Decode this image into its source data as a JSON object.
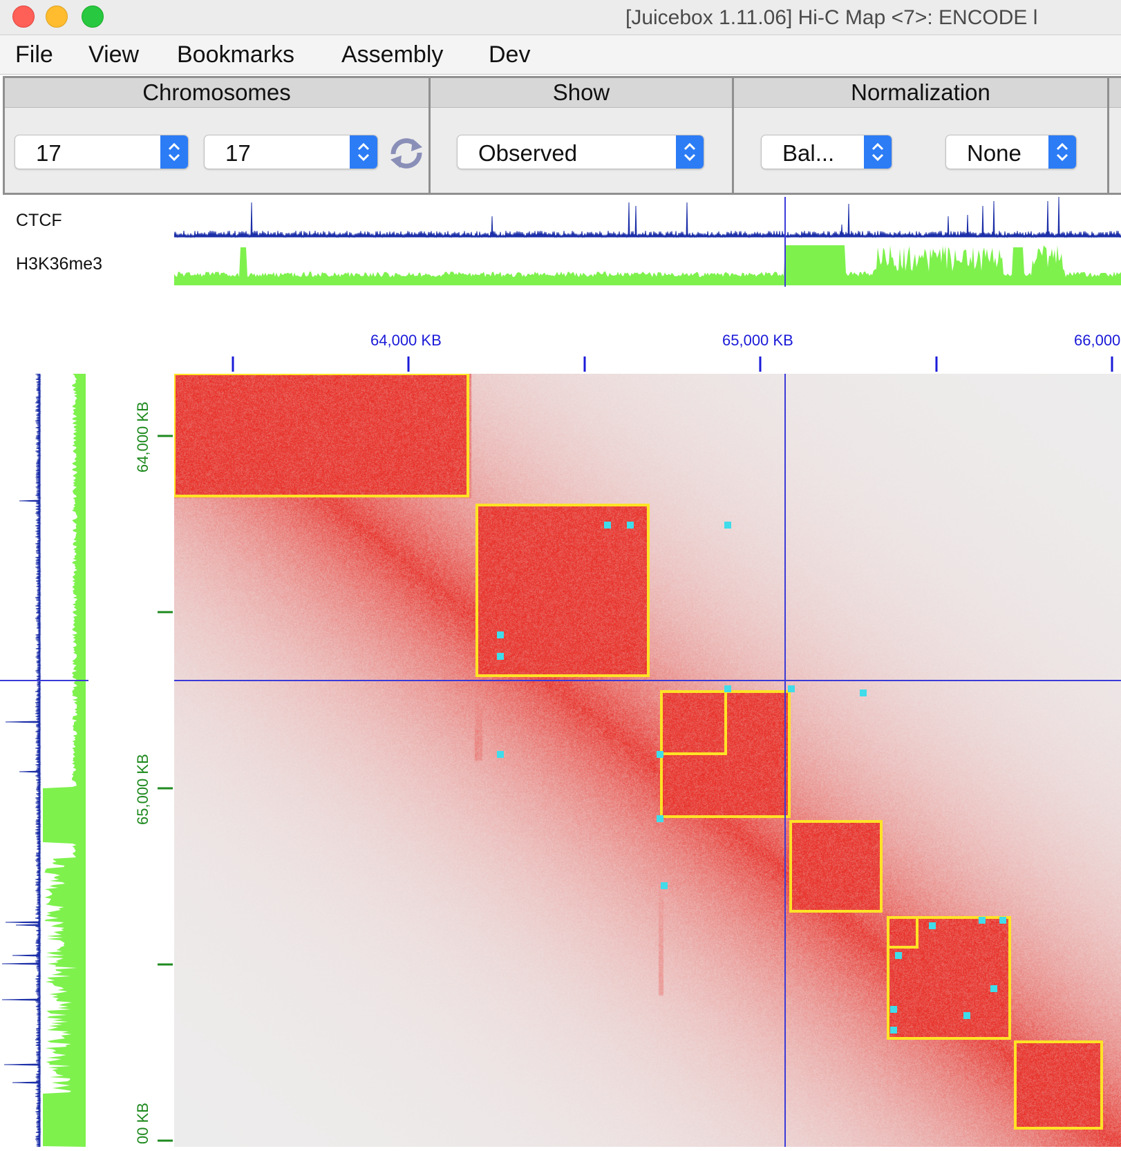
{
  "window": {
    "title": "[Juicebox 1.11.06] Hi-C Map <7>:   ENCODE l"
  },
  "menu": [
    "File",
    "View",
    "Bookmarks",
    "Assembly",
    "Dev"
  ],
  "panels": {
    "chromosomes": {
      "label": "Chromosomes",
      "chr1": "17",
      "chr2": "17"
    },
    "show": {
      "label": "Show",
      "value": "Observed"
    },
    "normalization": {
      "label": "Normalization",
      "value1": "Bal...",
      "value2": "None"
    }
  },
  "tracks": [
    {
      "name": "CTCF",
      "color": "#1c2fa8"
    },
    {
      "name": "H3K36me3",
      "color": "#7ef14d"
    }
  ],
  "axes": {
    "x_labels": [
      "64,000 KB",
      "65,000 KB",
      "66,000"
    ],
    "y_labels": [
      "64,000 KB",
      "65,000 KB",
      "00 KB"
    ]
  },
  "colors": {
    "contact": "#e8322a",
    "domain_outline": "#ffe326",
    "loop_marker": "#40dcea",
    "crosshair": "#3a3ad8",
    "background": "#ededed"
  },
  "icons": [
    "refresh-icon",
    "chevron-updown-icon"
  ]
}
